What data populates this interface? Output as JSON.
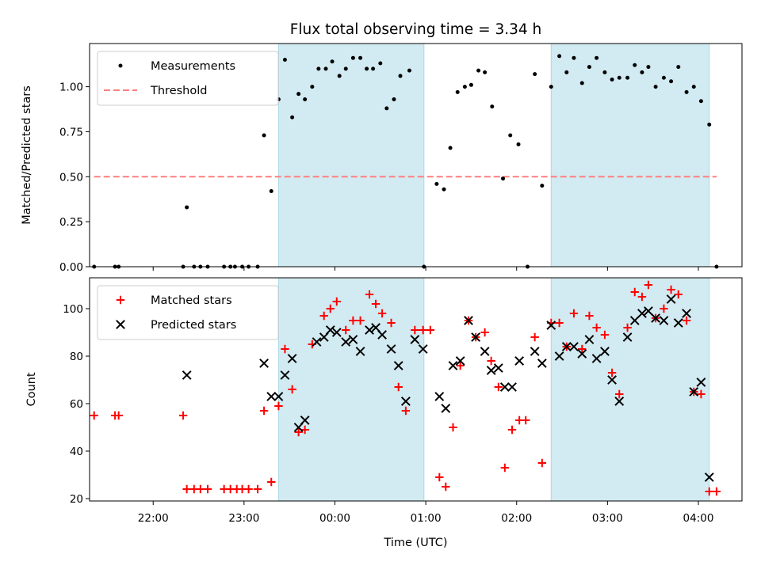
{
  "chart_data": [
    {
      "type": "scatter",
      "panel": "top",
      "title": "Flux total observing time = 3.34 h",
      "xlabel": "",
      "ylabel": "Matched/Predicted stars",
      "xlim": [
        -2.7,
        4.48
      ],
      "ylim": [
        0,
        1.24
      ],
      "ytick_labels": [
        "0.00",
        "0.25",
        "0.50",
        "0.75",
        "1.00"
      ],
      "yticks": [
        0,
        0.25,
        0.5,
        0.75,
        1.0
      ],
      "shaded_regions": [
        [
          -0.62,
          0.98
        ],
        [
          2.38,
          4.12
        ]
      ],
      "shade_color": "#add8e6",
      "legend": {
        "placement": "top-left",
        "entries": [
          "Measurements",
          "Threshold"
        ]
      },
      "threshold": {
        "name": "Threshold",
        "value": 0.5,
        "x_range": [
          -2.65,
          4.2
        ],
        "color": "#ff7f7f",
        "style": "dashed"
      },
      "series": [
        {
          "name": "Measurements",
          "marker": "dot",
          "color": "#000000",
          "points": [
            [
              -2.65,
              0.0
            ],
            [
              -2.42,
              0.0
            ],
            [
              -2.38,
              0.0
            ],
            [
              -1.67,
              0.0
            ],
            [
              -1.63,
              0.33
            ],
            [
              -1.55,
              0.0
            ],
            [
              -1.48,
              0.0
            ],
            [
              -1.4,
              0.0
            ],
            [
              -1.22,
              0.0
            ],
            [
              -1.15,
              0.0
            ],
            [
              -1.1,
              0.0
            ],
            [
              -1.02,
              0.0
            ],
            [
              -0.95,
              0.0
            ],
            [
              -0.85,
              0.0
            ],
            [
              -0.78,
              0.73
            ],
            [
              -0.7,
              0.42
            ],
            [
              -0.62,
              0.93
            ],
            [
              -0.55,
              1.15
            ],
            [
              -0.47,
              0.83
            ],
            [
              -0.4,
              0.96
            ],
            [
              -0.33,
              0.93
            ],
            [
              -0.25,
              1.0
            ],
            [
              -0.18,
              1.1
            ],
            [
              -0.1,
              1.1
            ],
            [
              -0.03,
              1.14
            ],
            [
              0.05,
              1.06
            ],
            [
              0.12,
              1.1
            ],
            [
              0.2,
              1.16
            ],
            [
              0.28,
              1.16
            ],
            [
              0.35,
              1.1
            ],
            [
              0.42,
              1.1
            ],
            [
              0.5,
              1.13
            ],
            [
              0.57,
              0.88
            ],
            [
              0.65,
              0.93
            ],
            [
              0.72,
              1.06
            ],
            [
              0.82,
              1.09
            ],
            [
              0.98,
              0.0
            ],
            [
              1.12,
              0.46
            ],
            [
              1.2,
              0.43
            ],
            [
              1.27,
              0.66
            ],
            [
              1.35,
              0.97
            ],
            [
              1.43,
              1.0
            ],
            [
              1.5,
              1.01
            ],
            [
              1.58,
              1.09
            ],
            [
              1.65,
              1.08
            ],
            [
              1.73,
              0.89
            ],
            [
              1.85,
              0.49
            ],
            [
              1.93,
              0.73
            ],
            [
              2.02,
              0.68
            ],
            [
              2.12,
              0.0
            ],
            [
              2.2,
              1.07
            ],
            [
              2.28,
              0.45
            ],
            [
              2.38,
              1.0
            ],
            [
              2.47,
              1.17
            ],
            [
              2.55,
              1.08
            ],
            [
              2.63,
              1.16
            ],
            [
              2.72,
              1.02
            ],
            [
              2.8,
              1.11
            ],
            [
              2.88,
              1.16
            ],
            [
              2.97,
              1.08
            ],
            [
              3.05,
              1.04
            ],
            [
              3.13,
              1.05
            ],
            [
              3.22,
              1.05
            ],
            [
              3.3,
              1.12
            ],
            [
              3.38,
              1.08
            ],
            [
              3.45,
              1.11
            ],
            [
              3.53,
              1.0
            ],
            [
              3.62,
              1.05
            ],
            [
              3.7,
              1.03
            ],
            [
              3.78,
              1.11
            ],
            [
              3.87,
              0.97
            ],
            [
              3.95,
              1.0
            ],
            [
              4.03,
              0.92
            ],
            [
              4.12,
              0.79
            ],
            [
              4.2,
              0.0
            ]
          ]
        }
      ]
    },
    {
      "type": "scatter",
      "panel": "bottom",
      "xlabel": "Time (UTC)",
      "ylabel": "Count",
      "xlim": [
        -2.7,
        4.48
      ],
      "ylim": [
        19,
        113
      ],
      "x_tick_labels": [
        "22:00",
        "23:00",
        "00:00",
        "01:00",
        "02:00",
        "03:00",
        "04:00"
      ],
      "xticks": [
        -2,
        -1,
        0,
        1,
        2,
        3,
        4
      ],
      "ytick_labels": [
        "20",
        "40",
        "60",
        "80",
        "100"
      ],
      "yticks": [
        20,
        40,
        60,
        80,
        100
      ],
      "shaded_regions": [
        [
          -0.62,
          0.98
        ],
        [
          2.38,
          4.12
        ]
      ],
      "shade_color": "#add8e6",
      "legend": {
        "placement": "top-left",
        "entries": [
          "Matched stars",
          "Predicted stars"
        ]
      },
      "series": [
        {
          "name": "Matched stars",
          "marker": "plus",
          "color": "#ff0000",
          "points": [
            [
              -2.65,
              55
            ],
            [
              -2.42,
              55
            ],
            [
              -2.38,
              55
            ],
            [
              -1.67,
              55
            ],
            [
              -1.63,
              24
            ],
            [
              -1.55,
              24
            ],
            [
              -1.48,
              24
            ],
            [
              -1.4,
              24
            ],
            [
              -1.22,
              24
            ],
            [
              -1.15,
              24
            ],
            [
              -1.08,
              24
            ],
            [
              -1.02,
              24
            ],
            [
              -0.95,
              24
            ],
            [
              -0.85,
              24
            ],
            [
              -0.78,
              57
            ],
            [
              -0.7,
              27
            ],
            [
              -0.62,
              59
            ],
            [
              -0.55,
              83
            ],
            [
              -0.47,
              66
            ],
            [
              -0.4,
              48
            ],
            [
              -0.33,
              49
            ],
            [
              -0.25,
              85
            ],
            [
              -0.12,
              97
            ],
            [
              -0.05,
              100
            ],
            [
              0.02,
              103
            ],
            [
              0.12,
              91
            ],
            [
              0.2,
              95
            ],
            [
              0.28,
              95
            ],
            [
              0.38,
              106
            ],
            [
              0.45,
              102
            ],
            [
              0.52,
              98
            ],
            [
              0.62,
              94
            ],
            [
              0.7,
              67
            ],
            [
              0.78,
              57
            ],
            [
              0.88,
              91
            ],
            [
              0.97,
              91
            ],
            [
              1.05,
              91
            ],
            [
              1.15,
              29
            ],
            [
              1.22,
              25
            ],
            [
              1.3,
              50
            ],
            [
              1.38,
              76
            ],
            [
              1.47,
              95
            ],
            [
              1.55,
              88
            ],
            [
              1.65,
              90
            ],
            [
              1.72,
              78
            ],
            [
              1.8,
              67
            ],
            [
              1.87,
              33
            ],
            [
              1.95,
              49
            ],
            [
              2.03,
              53
            ],
            [
              2.1,
              53
            ],
            [
              2.2,
              88
            ],
            [
              2.28,
              35
            ],
            [
              2.38,
              94
            ],
            [
              2.47,
              94
            ],
            [
              2.55,
              84
            ],
            [
              2.63,
              98
            ],
            [
              2.72,
              83
            ],
            [
              2.8,
              97
            ],
            [
              2.88,
              92
            ],
            [
              2.97,
              89
            ],
            [
              3.05,
              73
            ],
            [
              3.13,
              64
            ],
            [
              3.22,
              92
            ],
            [
              3.3,
              107
            ],
            [
              3.38,
              105
            ],
            [
              3.45,
              110
            ],
            [
              3.53,
              96
            ],
            [
              3.62,
              100
            ],
            [
              3.7,
              108
            ],
            [
              3.78,
              106
            ],
            [
              3.87,
              95
            ],
            [
              3.95,
              65
            ],
            [
              4.03,
              64
            ],
            [
              4.12,
              23
            ],
            [
              4.2,
              23
            ]
          ]
        },
        {
          "name": "Predicted stars",
          "marker": "x",
          "color": "#000000",
          "points": [
            [
              -1.63,
              72
            ],
            [
              -0.78,
              77
            ],
            [
              -0.7,
              63
            ],
            [
              -0.62,
              63
            ],
            [
              -0.55,
              72
            ],
            [
              -0.47,
              79
            ],
            [
              -0.4,
              50
            ],
            [
              -0.33,
              53
            ],
            [
              -0.2,
              86
            ],
            [
              -0.12,
              88
            ],
            [
              -0.05,
              91
            ],
            [
              0.02,
              90
            ],
            [
              0.12,
              86
            ],
            [
              0.2,
              87
            ],
            [
              0.28,
              82
            ],
            [
              0.38,
              91
            ],
            [
              0.45,
              92
            ],
            [
              0.52,
              89
            ],
            [
              0.62,
              83
            ],
            [
              0.7,
              76
            ],
            [
              0.78,
              61
            ],
            [
              0.88,
              87
            ],
            [
              0.97,
              83
            ],
            [
              1.15,
              63
            ],
            [
              1.22,
              58
            ],
            [
              1.3,
              76
            ],
            [
              1.38,
              78
            ],
            [
              1.47,
              95
            ],
            [
              1.55,
              88
            ],
            [
              1.65,
              82
            ],
            [
              1.72,
              74
            ],
            [
              1.8,
              75
            ],
            [
              1.87,
              67
            ],
            [
              1.95,
              67
            ],
            [
              2.03,
              78
            ],
            [
              2.2,
              82
            ],
            [
              2.28,
              77
            ],
            [
              2.38,
              93
            ],
            [
              2.47,
              80
            ],
            [
              2.55,
              84
            ],
            [
              2.63,
              84
            ],
            [
              2.72,
              81
            ],
            [
              2.8,
              87
            ],
            [
              2.88,
              79
            ],
            [
              2.97,
              82
            ],
            [
              3.05,
              70
            ],
            [
              3.13,
              61
            ],
            [
              3.22,
              88
            ],
            [
              3.3,
              95
            ],
            [
              3.38,
              98
            ],
            [
              3.45,
              99
            ],
            [
              3.53,
              96
            ],
            [
              3.62,
              95
            ],
            [
              3.7,
              104
            ],
            [
              3.78,
              94
            ],
            [
              3.87,
              98
            ],
            [
              3.95,
              65
            ],
            [
              4.03,
              69
            ],
            [
              4.12,
              29
            ]
          ]
        }
      ]
    }
  ]
}
